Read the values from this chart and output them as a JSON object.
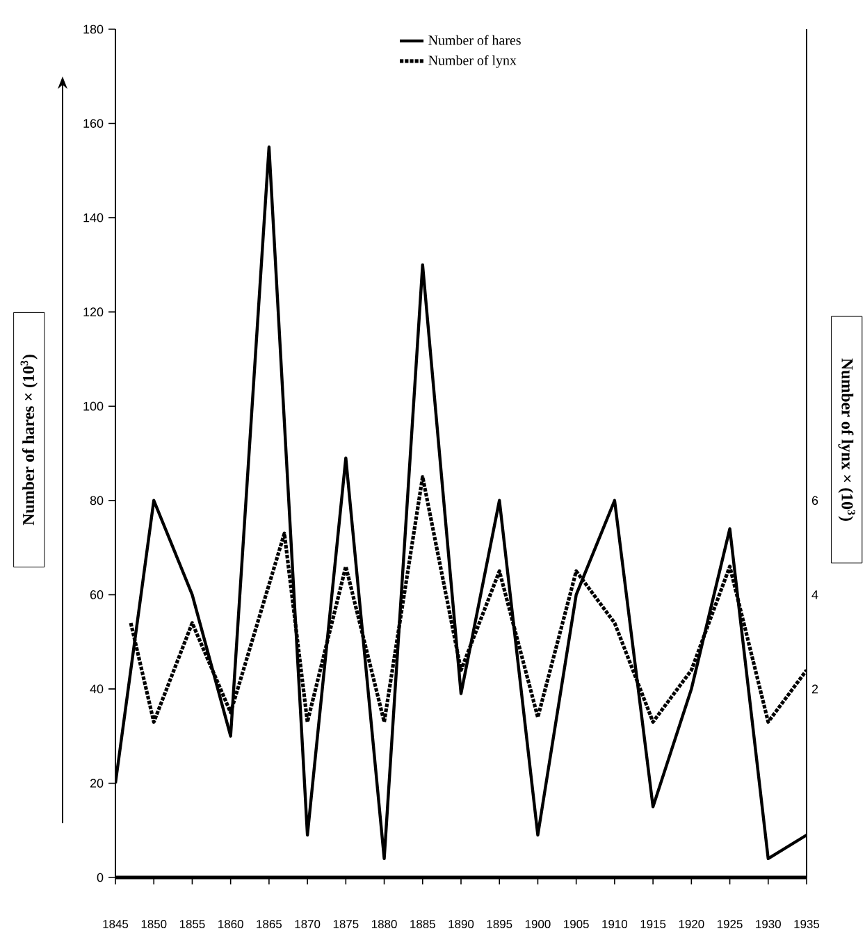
{
  "chart_data": {
    "type": "line",
    "ylabel": "Number of hares × (10$^{3}$)",
    "y2label": "Number of lynx × (10$^{3}$)",
    "x": [
      1845,
      1850,
      1855,
      1860,
      1865,
      1870,
      1875,
      1880,
      1885,
      1890,
      1895,
      1900,
      1905,
      1910,
      1915,
      1920,
      1925,
      1930,
      1935
    ],
    "xlim": [
      1845,
      1935
    ],
    "xticks": [
      1845,
      1850,
      1855,
      1860,
      1865,
      1870,
      1875,
      1880,
      1885,
      1890,
      1895,
      1900,
      1905,
      1910,
      1915,
      1920,
      1925,
      1930,
      1935
    ],
    "ylim": [
      0,
      180
    ],
    "yticks": [
      0,
      20,
      40,
      60,
      80,
      100,
      120,
      140,
      160,
      180
    ],
    "y2lim": [
      -2,
      16
    ],
    "y2ticks": [
      2,
      4,
      6
    ],
    "legend": "top",
    "grid": false,
    "series": [
      {
        "name": "Number of hares",
        "color": "#000000",
        "line_style": "solid",
        "values": [
          20,
          80,
          60,
          30,
          155,
          9,
          89,
          4,
          130,
          39,
          80,
          9,
          60,
          80,
          15,
          40,
          74,
          4,
          9
        ]
      },
      {
        "name": "Number of lynx",
        "color": "#000000",
        "line_style": "dotted",
        "axis": "y2",
        "x": [
          1847,
          1850,
          1855,
          1860,
          1867,
          1870,
          1875,
          1880,
          1885,
          1890,
          1895,
          1900,
          1905,
          1910,
          1915,
          1920,
          1925,
          1930,
          1935
        ],
        "values": [
          3.4,
          1.3,
          3.4,
          1.5,
          5.3,
          1.3,
          4.6,
          1.3,
          6.5,
          2.4,
          4.5,
          1.4,
          4.5,
          3.4,
          1.3,
          2.4,
          4.6,
          1.3,
          2.4
        ]
      }
    ]
  }
}
